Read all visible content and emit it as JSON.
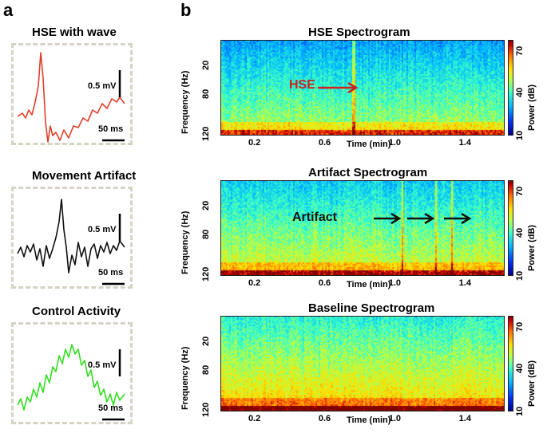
{
  "panel_a": {
    "letter": "a",
    "traces": [
      {
        "title": "HSE with wave",
        "amp_label": "0.5 mV",
        "time_label": "50 ms",
        "color": "#e0402a"
      },
      {
        "title": "Movement Artifact",
        "amp_label": "0.5 mV",
        "time_label": "50 ms",
        "color": "#111111"
      },
      {
        "title": "Control Activity",
        "amp_label": "0.5 mV",
        "time_label": "50 ms",
        "color": "#33dd22"
      }
    ]
  },
  "panel_b": {
    "letter": "b",
    "spectrograms": [
      {
        "title": "HSE Spectrogram",
        "annotation": "HSE",
        "annotation_color": "#cc2222"
      },
      {
        "title": "Artifact Spectrogram",
        "annotation": "Artifact",
        "annotation_color": "#111111"
      },
      {
        "title": "Baseline Spectrogram",
        "annotation": "",
        "annotation_color": ""
      }
    ],
    "ylabel": "Frequency (Hz)",
    "xlabel": "Time (min)",
    "cbar_label": "Power (dB)",
    "y_ticks": [
      "120",
      "80",
      "20"
    ],
    "x_ticks": [
      "0.2",
      "0.6",
      "1.0",
      "1.4"
    ],
    "cbar_ticks": [
      "70",
      "40",
      "10"
    ]
  },
  "chart_data": [
    {
      "type": "heatmap",
      "title": "HSE Spectrogram",
      "xlabel": "Time (min)",
      "ylabel": "Frequency (Hz)",
      "colorbar_label": "Power (dB)",
      "xlim": [
        0,
        1.62
      ],
      "ylim": [
        10,
        145
      ],
      "clim": [
        10,
        70
      ],
      "x_ticks": [
        0.2,
        0.6,
        1.0,
        1.4
      ],
      "y_ticks": [
        20,
        80,
        120
      ],
      "event_times_min": [
        0.75
      ]
    },
    {
      "type": "heatmap",
      "title": "Artifact Spectrogram",
      "xlabel": "Time (min)",
      "ylabel": "Frequency (Hz)",
      "colorbar_label": "Power (dB)",
      "xlim": [
        0,
        1.62
      ],
      "ylim": [
        10,
        145
      ],
      "clim": [
        10,
        70
      ],
      "x_ticks": [
        0.2,
        0.6,
        1.0,
        1.4
      ],
      "y_ticks": [
        20,
        80,
        120
      ],
      "event_times_min": [
        1.03,
        1.22,
        1.31
      ]
    },
    {
      "type": "heatmap",
      "title": "Baseline Spectrogram",
      "xlabel": "Time (min)",
      "ylabel": "Frequency (Hz)",
      "colorbar_label": "Power (dB)",
      "xlim": [
        0,
        1.62
      ],
      "ylim": [
        10,
        145
      ],
      "clim": [
        10,
        70
      ],
      "x_ticks": [
        0.2,
        0.6,
        1.0,
        1.4
      ],
      "y_ticks": [
        20,
        80,
        120
      ],
      "event_times_min": []
    }
  ]
}
